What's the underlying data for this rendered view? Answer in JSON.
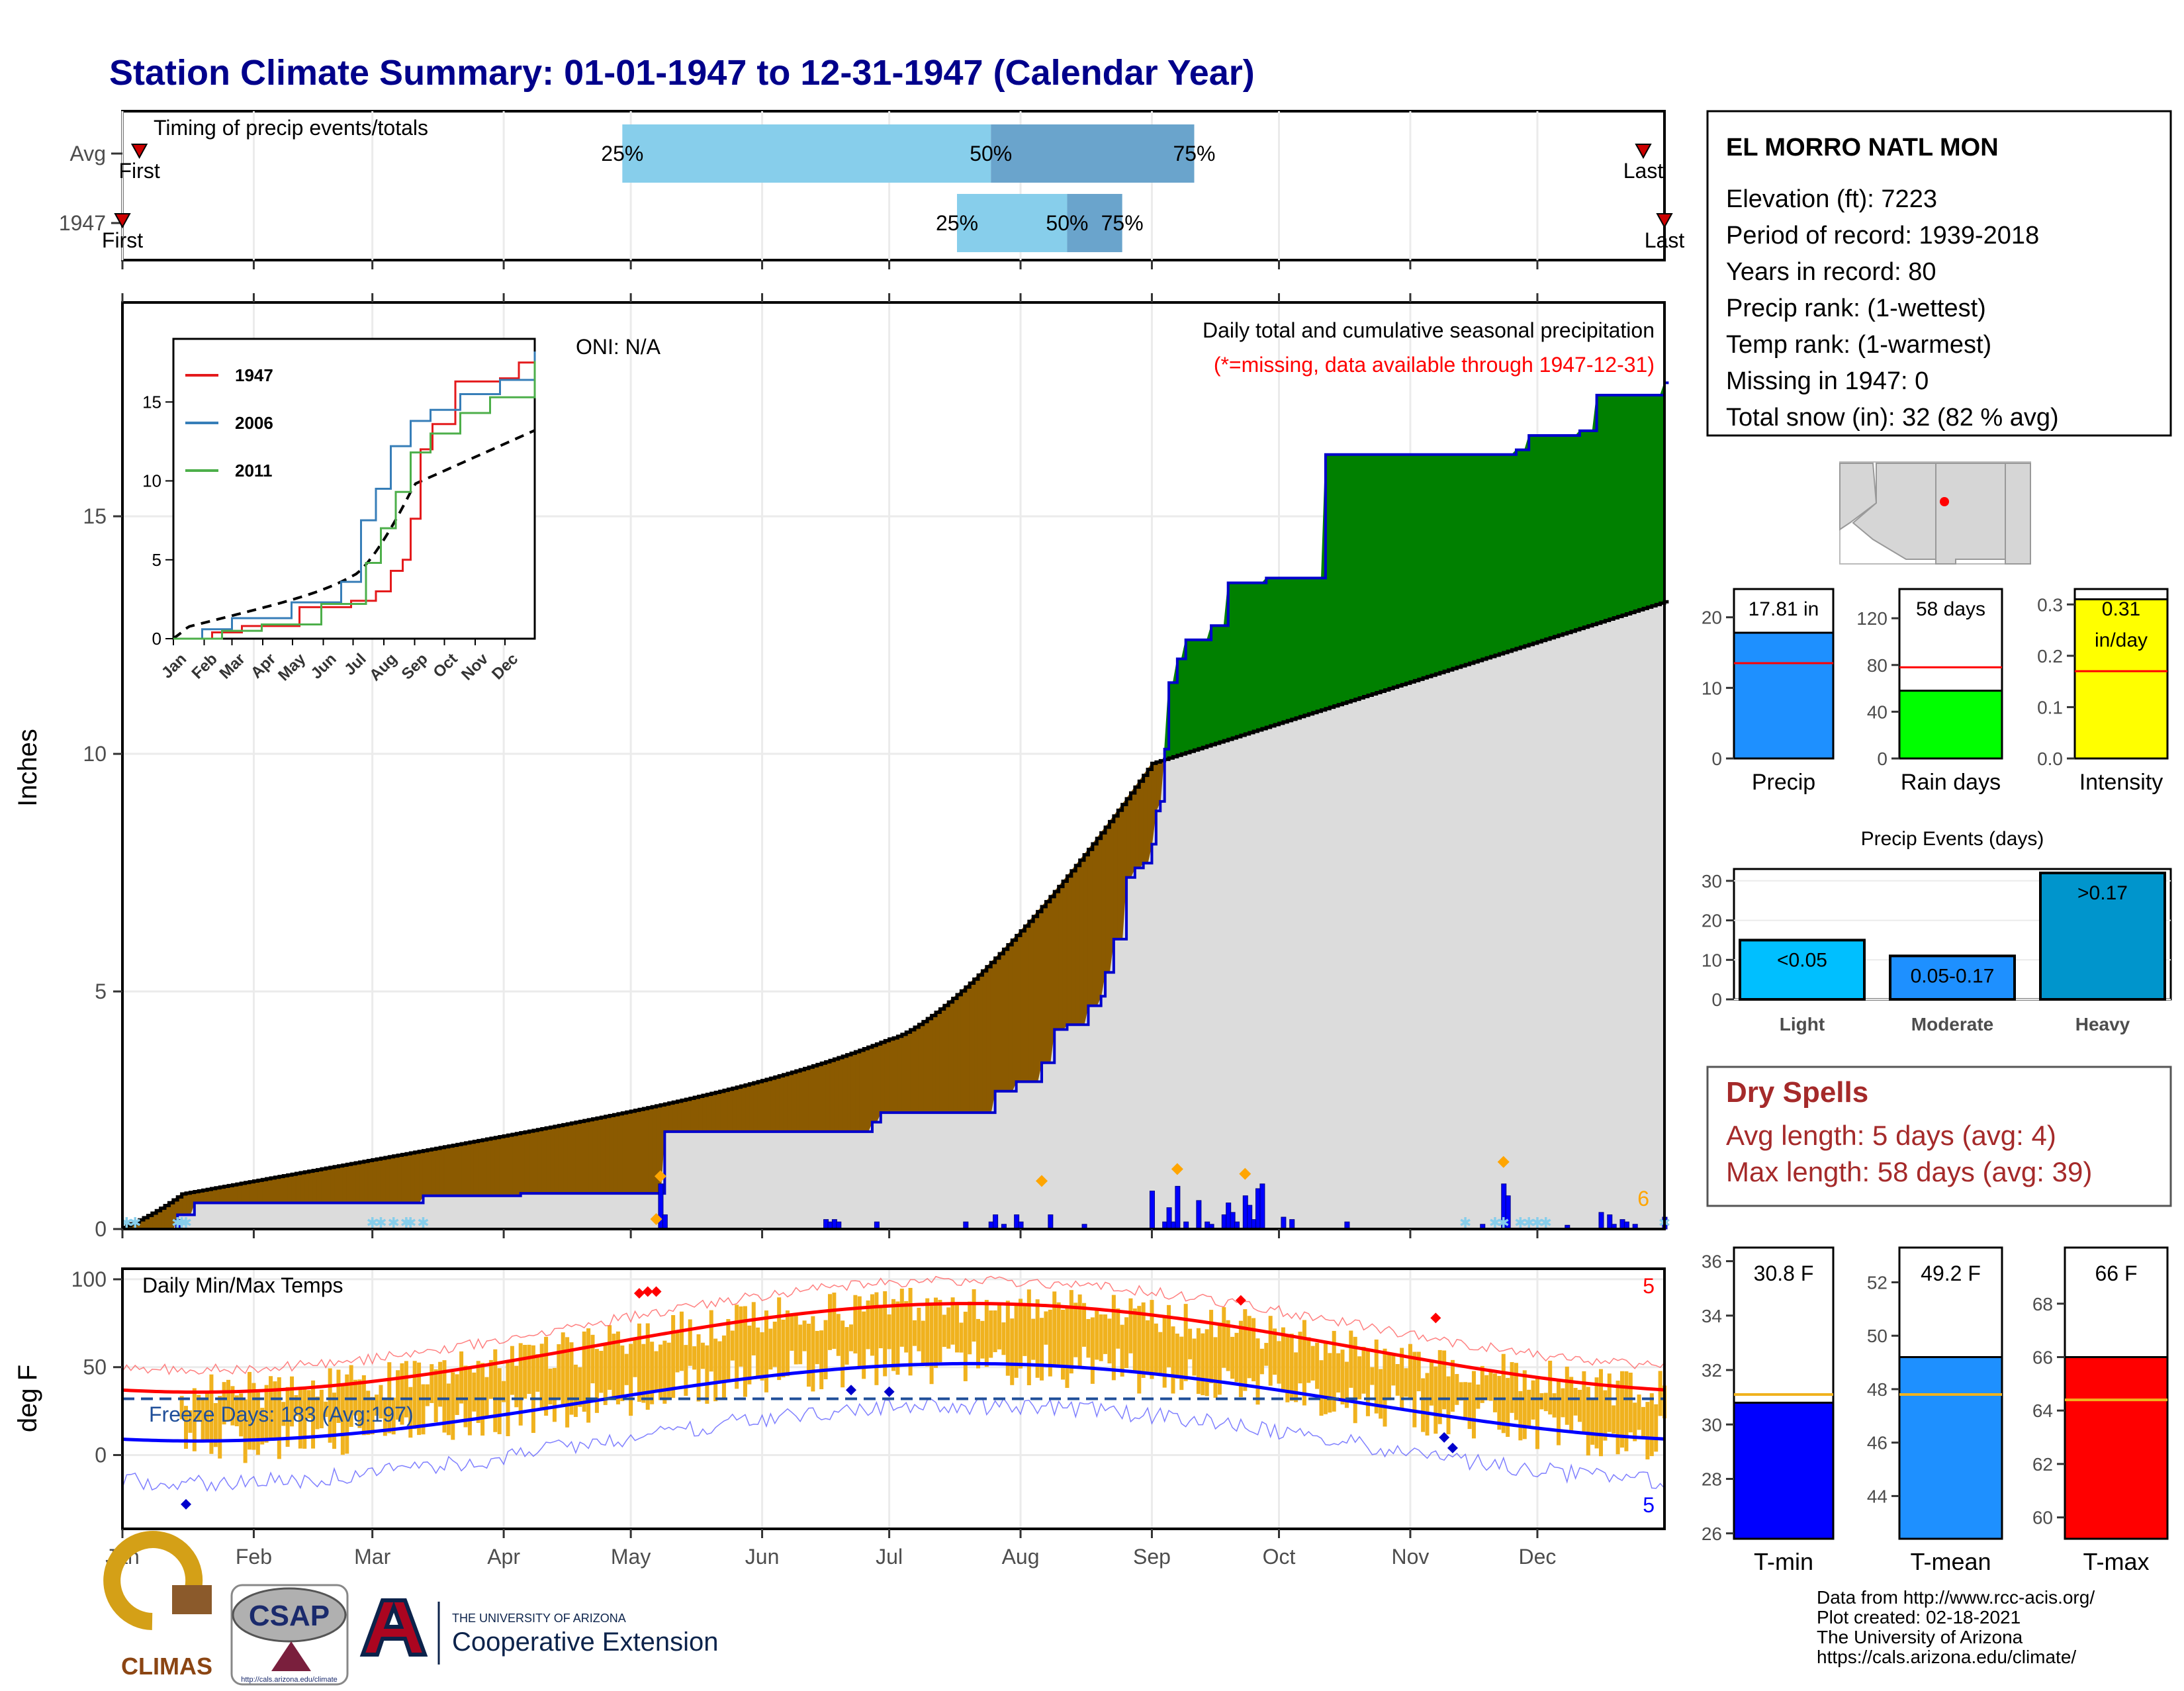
{
  "title": "Station Climate Summary: 01-01-1947 to 12-31-1947 (Calendar Year)",
  "timing": {
    "title": "Timing of precip events/totals",
    "rows": [
      {
        "label": "Avg",
        "first_label": "First",
        "last_label": "Last",
        "first_day": 5,
        "last_day": 360,
        "p25_day": 119,
        "p50_day": 206,
        "p75_day": 254,
        "p25_label": "25%",
        "p50_label": "50%",
        "p75_label": "75%"
      },
      {
        "label": "1947",
        "first_label": "First",
        "last_label": "Last",
        "first_day": 1,
        "last_day": 365,
        "p25_day": 198,
        "p50_day": 224,
        "p75_day": 237,
        "p25_label": "25%",
        "p50_label": "50%",
        "p75_label": "75%"
      }
    ],
    "colors": {
      "light": "#87ceeb",
      "dark": "#6aa4cc",
      "marker": "#cc0000"
    }
  },
  "precip_panel": {
    "ylabel": "Inches",
    "oni_label": "ONI: N/A",
    "caption": "Daily total and cumulative seasonal precipitation",
    "missing_note": "(*=missing, data available through 1947-12-31)",
    "extreme_count": "6",
    "yticks": [
      0,
      5,
      10,
      15
    ],
    "ylim": [
      0,
      19.5
    ],
    "colors": {
      "wet": "#008000",
      "dry": "#8b5a00",
      "normal_fill": "#dcdcdc",
      "cumulative_line": "#0000cc",
      "bars": "#0000ff",
      "snow": "#87ceeb",
      "extreme": "#ffa500"
    }
  },
  "inset": {
    "yticks": [
      0,
      5,
      10,
      15
    ],
    "xticks": [
      "Jan",
      "Feb",
      "Mar",
      "Apr",
      "May",
      "Jun",
      "Jul",
      "Aug",
      "Sep",
      "Oct",
      "Nov",
      "Dec"
    ],
    "legend": [
      {
        "name": "1947",
        "color": "#e41a1c"
      },
      {
        "name": "2006",
        "color": "#377eb8"
      },
      {
        "name": "2011",
        "color": "#4daf4a"
      }
    ]
  },
  "temp_panel": {
    "title": "Daily Min/Max Temps",
    "ylabel": "deg F",
    "yticks": [
      0,
      50,
      100
    ],
    "freeze_label": "Freeze Days: 183 (Avg:197)",
    "freeze_line": 32,
    "record_high_count": "5",
    "record_low_count": "5",
    "colors": {
      "bars": "#f0b21e",
      "avg_max": "#ff0000",
      "avg_min": "#0000ff",
      "freeze": "#1f4e99"
    }
  },
  "months": [
    "Jan",
    "Feb",
    "Mar",
    "Apr",
    "May",
    "Jun",
    "Jul",
    "Aug",
    "Sep",
    "Oct",
    "Nov",
    "Dec"
  ],
  "station": {
    "name": "EL MORRO NATL MON",
    "lines": [
      "Elevation (ft): 7223",
      "Period of record: 1939-2018",
      "Years in record: 80",
      "Precip rank:  (1-wettest)",
      "Temp rank:  (1-warmest)",
      "Missing in 1947: 0",
      "Total snow (in): 32 (82 % avg)"
    ]
  },
  "summary_bars": [
    {
      "label": "Precip",
      "value_label": "17.81 in",
      "value": 17.81,
      "avg": 13.5,
      "ymax": 24,
      "ticks": [
        0,
        10,
        20
      ],
      "color": "#1e90ff"
    },
    {
      "label": "Rain days",
      "value_label": "58 days",
      "value": 58,
      "avg": 78,
      "ymax": 145,
      "ticks": [
        0,
        40,
        80,
        120
      ],
      "color": "#00ff00"
    },
    {
      "label": "Intensity",
      "value_label": "0.31 in/day",
      "value": 0.31,
      "avg": 0.17,
      "ymax": 0.33,
      "ticks": [
        0.0,
        0.1,
        0.2,
        0.3
      ],
      "color": "#ffff00"
    }
  ],
  "precip_events": {
    "title": "Precip Events (days)",
    "yticks": [
      0,
      10,
      20,
      30
    ],
    "ymax": 33,
    "categories": [
      {
        "name": "Light",
        "bar_label": "<0.05",
        "value": 15,
        "color": "#00bfff"
      },
      {
        "name": "Moderate",
        "bar_label": "0.05-0.17",
        "value": 11,
        "color": "#1e90ff"
      },
      {
        "name": "Heavy",
        "bar_label": ">0.17",
        "value": 32,
        "color": "#0095cc"
      }
    ]
  },
  "dry_spells": {
    "title": "Dry Spells",
    "lines": [
      "Avg length: 5 days (avg: 4)",
      "Max length: 58 days (avg: 39)"
    ]
  },
  "temp_bars": [
    {
      "label": "T-min",
      "value_label": "30.8 F",
      "value": 30.8,
      "avg": 31.1,
      "ymin": 25.8,
      "ymax": 36.5,
      "ticks": [
        26,
        28,
        30,
        32,
        34,
        36
      ],
      "color": "#0000ff"
    },
    {
      "label": "T-mean",
      "value_label": "49.2 F",
      "value": 49.2,
      "avg": 47.8,
      "ymin": 42.4,
      "ymax": 53.3,
      "ticks": [
        44,
        46,
        48,
        50,
        52
      ],
      "color": "#1e90ff"
    },
    {
      "label": "T-max",
      "value_label": "66 F",
      "value": 66.0,
      "avg": 64.4,
      "ymin": 59.2,
      "ymax": 70.1,
      "ticks": [
        60,
        62,
        64,
        66,
        68
      ],
      "color": "#ff0000"
    }
  ],
  "footer": {
    "lines": [
      "Data from http://www.rcc-acis.org/",
      "Plot created: 02-18-2021",
      "The University of Arizona",
      "https://cals.arizona.edu/climate/"
    ],
    "logos": {
      "climas": "CLIMAS",
      "csap": "CSAP",
      "csap_url": "http://cals.arizona.edu/climate",
      "ua_small": "THE UNIVERSITY OF ARIZONA",
      "ua_big": "Cooperative Extension"
    }
  }
}
